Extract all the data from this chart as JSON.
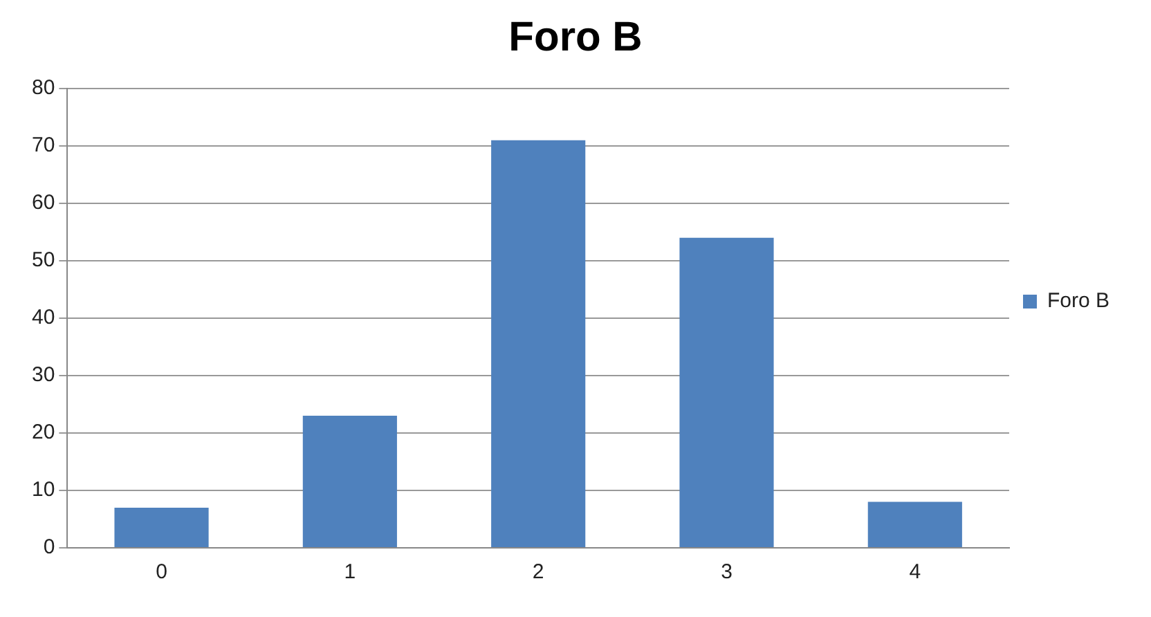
{
  "chart_data": {
    "type": "bar",
    "title": "Foro B",
    "categories": [
      "0",
      "1",
      "2",
      "3",
      "4"
    ],
    "series": [
      {
        "name": "Foro B",
        "color": "#4f81bd",
        "values": [
          7,
          23,
          71,
          54,
          8
        ]
      }
    ],
    "ylim": [
      0,
      80
    ],
    "yticks": [
      0,
      10,
      20,
      30,
      40,
      50,
      60,
      70,
      80
    ],
    "grid": "y",
    "legend": "right"
  }
}
